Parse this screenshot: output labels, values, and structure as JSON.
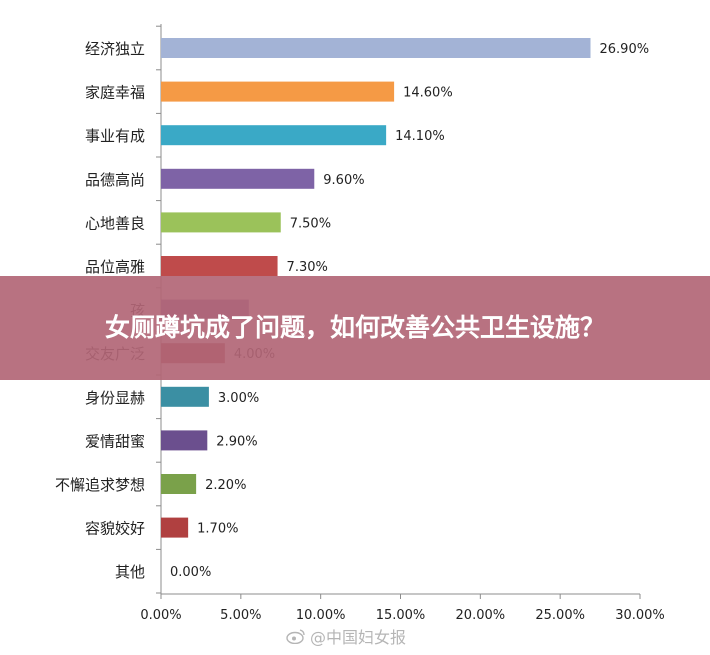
{
  "banner": {
    "title": "女厕蹲坑成了问题，如何改善公共卫生设施？"
  },
  "watermark": {
    "text": "@中国妇女报",
    "icon": "weibo-icon"
  },
  "chart_data": {
    "type": "bar",
    "orientation": "horizontal",
    "categories": [
      "经济独立",
      "家庭幸福",
      "事业有成",
      "品德高尚",
      "心地善良",
      "品位高雅",
      "孩",
      "交友广泛",
      "身份显赫",
      "爱情甜蜜",
      "不懈追求梦想",
      "容貌姣好",
      "其他"
    ],
    "values": [
      26.9,
      14.6,
      14.1,
      9.6,
      7.5,
      7.3,
      null,
      4.0,
      3.0,
      2.9,
      2.2,
      1.7,
      0.0
    ],
    "value_labels": [
      "26.90%",
      "14.60%",
      "14.10%",
      "9.60%",
      "7.50%",
      "7.30%",
      "",
      "4.00%",
      "3.00%",
      "2.90%",
      "2.20%",
      "1.70%",
      "0.00%"
    ],
    "colors": [
      "#a3b3d6",
      "#f59a45",
      "#3aa9c6",
      "#7e63a6",
      "#9bc25a",
      "#bf4b4b",
      "#7e63a6",
      "#a84444",
      "#3b8fa3",
      "#6b4f8e",
      "#7aa14a",
      "#b04040",
      "#999999"
    ],
    "xlim": [
      0,
      30
    ],
    "x_ticks": [
      "0.00%",
      "5.00%",
      "10.00%",
      "15.00%",
      "20.00%",
      "25.00%",
      "30.00%"
    ],
    "title": "",
    "xlabel": "",
    "ylabel": "",
    "grid": false,
    "legend": "none"
  }
}
